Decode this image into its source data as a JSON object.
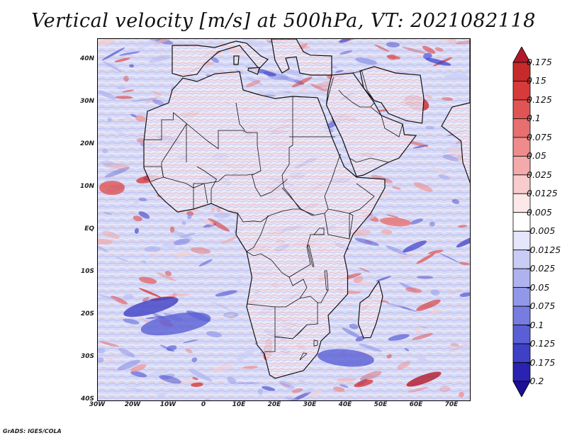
{
  "title": "Vertical velocity [m/s] at 500hPa, VT: 2021082118",
  "credit": "GrADS: IGES/COLA",
  "y_axis_labels": [
    "40N",
    "30N",
    "20N",
    "10N",
    "EQ",
    "10S",
    "20S",
    "30S",
    "40S"
  ],
  "x_axis_labels": [
    "30W",
    "20W",
    "10W",
    "0",
    "10E",
    "20E",
    "30E",
    "40E",
    "50E",
    "60E",
    "70E"
  ],
  "colorbar": {
    "labels": [
      "0.175",
      "0.15",
      "0.125",
      "0.1",
      "0.075",
      "0.05",
      "0.025",
      "0.0125",
      "0.005",
      "-0.005",
      "-0.0125",
      "-0.025",
      "-0.05",
      "-0.075",
      "-0.1",
      "-0.125",
      "-0.175",
      "-0.2"
    ],
    "colors": [
      "#b2182b",
      "#c62a2a",
      "#d73a3a",
      "#e05454",
      "#e76f6f",
      "#ee8c8c",
      "#f3aaaa",
      "#f8cccc",
      "#fce8e8",
      "#ffffff",
      "#e4e6fb",
      "#c9cdf6",
      "#aeb3f0",
      "#9298e9",
      "#767ce0",
      "#5a5fd6",
      "#3e40c6",
      "#2a22b0",
      "#1c0f96"
    ]
  },
  "map": {
    "lat_range": [
      -40,
      45
    ],
    "lon_range": [
      -30,
      75
    ],
    "projection": "latlon",
    "regions": [
      "Africa",
      "Arabian Peninsula",
      "Madagascar",
      "Mediterranean"
    ]
  }
}
